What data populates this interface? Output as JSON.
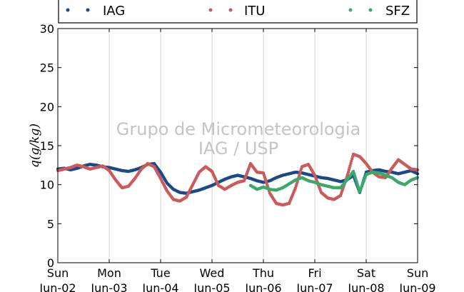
{
  "chart_data": {
    "type": "scatter",
    "ylabel": "q(g/kg)",
    "ylim": [
      0,
      30
    ],
    "yticks": [
      0,
      5,
      10,
      15,
      20,
      25,
      30
    ],
    "xlim": [
      "2013-06-02T00:00",
      "2013-06-09T00:00"
    ],
    "xticks": [
      {
        "day": "Sun",
        "date": "Jun-02"
      },
      {
        "day": "Mon",
        "date": "Jun-03"
      },
      {
        "day": "Tue",
        "date": "Jun-04"
      },
      {
        "day": "Wed",
        "date": "Jun-05"
      },
      {
        "day": "Thu",
        "date": "Jun-06"
      },
      {
        "day": "Fri",
        "date": "Jun-07"
      },
      {
        "day": "Sat",
        "date": "Jun-08"
      },
      {
        "day": "Sun",
        "date": "Jun-09"
      }
    ],
    "grid": true,
    "legend_position": "top",
    "watermark": [
      "Grupo de Micrometeorologia",
      "IAG / USP"
    ],
    "series": [
      {
        "name": "IAG",
        "color": "#1a4a8a",
        "points": [
          [
            "2013-06-02T00:00",
            12.0
          ],
          [
            "2013-06-02T03:00",
            12.1
          ],
          [
            "2013-06-02T06:00",
            11.9
          ],
          [
            "2013-06-02T09:00",
            12.1
          ],
          [
            "2013-06-02T12:00",
            12.4
          ],
          [
            "2013-06-02T15:00",
            12.6
          ],
          [
            "2013-06-02T18:00",
            12.5
          ],
          [
            "2013-06-02T21:00",
            12.3
          ],
          [
            "2013-06-03T00:00",
            12.2
          ],
          [
            "2013-06-03T03:00",
            12.0
          ],
          [
            "2013-06-03T06:00",
            11.8
          ],
          [
            "2013-06-03T09:00",
            11.7
          ],
          [
            "2013-06-03T12:00",
            11.9
          ],
          [
            "2013-06-03T15:00",
            12.2
          ],
          [
            "2013-06-03T18:00",
            12.6
          ],
          [
            "2013-06-03T21:00",
            12.7
          ],
          [
            "2013-06-04T00:00",
            11.6
          ],
          [
            "2013-06-04T03:00",
            10.2
          ],
          [
            "2013-06-04T06:00",
            9.4
          ],
          [
            "2013-06-04T09:00",
            9.0
          ],
          [
            "2013-06-04T12:00",
            8.9
          ],
          [
            "2013-06-04T15:00",
            9.1
          ],
          [
            "2013-06-04T18:00",
            9.3
          ],
          [
            "2013-06-04T21:00",
            9.6
          ],
          [
            "2013-06-05T00:00",
            9.9
          ],
          [
            "2013-06-05T03:00",
            10.3
          ],
          [
            "2013-06-05T06:00",
            10.7
          ],
          [
            "2013-06-05T09:00",
            11.0
          ],
          [
            "2013-06-05T12:00",
            11.2
          ],
          [
            "2013-06-05T15:00",
            11.0
          ],
          [
            "2013-06-05T18:00",
            10.8
          ],
          [
            "2013-06-05T21:00",
            10.5
          ],
          [
            "2013-06-06T00:00",
            10.3
          ],
          [
            "2013-06-06T03:00",
            10.5
          ],
          [
            "2013-06-06T06:00",
            10.9
          ],
          [
            "2013-06-06T09:00",
            11.2
          ],
          [
            "2013-06-06T12:00",
            11.4
          ],
          [
            "2013-06-06T15:00",
            11.6
          ],
          [
            "2013-06-06T18:00",
            11.5
          ],
          [
            "2013-06-06T21:00",
            11.3
          ],
          [
            "2013-06-07T00:00",
            11.1
          ],
          [
            "2013-06-07T03:00",
            10.9
          ],
          [
            "2013-06-07T06:00",
            10.8
          ],
          [
            "2013-06-07T09:00",
            10.6
          ],
          [
            "2013-06-07T12:00",
            10.4
          ],
          [
            "2013-06-07T15:00",
            10.6
          ],
          [
            "2013-06-07T18:00",
            11.2
          ],
          [
            "2013-06-07T21:00",
            9.0
          ],
          [
            "2013-06-08T00:00",
            11.6
          ],
          [
            "2013-06-08T03:00",
            11.8
          ],
          [
            "2013-06-08T06:00",
            11.9
          ],
          [
            "2013-06-08T09:00",
            11.7
          ],
          [
            "2013-06-08T12:00",
            11.6
          ],
          [
            "2013-06-08T15:00",
            11.4
          ],
          [
            "2013-06-08T18:00",
            11.6
          ],
          [
            "2013-06-08T21:00",
            11.8
          ],
          [
            "2013-06-09T00:00",
            11.4
          ]
        ]
      },
      {
        "name": "ITU",
        "color": "#cc5a5a",
        "points": [
          [
            "2013-06-02T00:00",
            11.8
          ],
          [
            "2013-06-02T03:00",
            12.0
          ],
          [
            "2013-06-02T06:00",
            12.2
          ],
          [
            "2013-06-02T09:00",
            12.5
          ],
          [
            "2013-06-02T12:00",
            12.3
          ],
          [
            "2013-06-02T15:00",
            12.0
          ],
          [
            "2013-06-02T18:00",
            12.2
          ],
          [
            "2013-06-02T21:00",
            12.4
          ],
          [
            "2013-06-03T00:00",
            11.8
          ],
          [
            "2013-06-03T03:00",
            10.6
          ],
          [
            "2013-06-03T06:00",
            9.6
          ],
          [
            "2013-06-03T09:00",
            9.8
          ],
          [
            "2013-06-03T12:00",
            10.8
          ],
          [
            "2013-06-03T15:00",
            12.0
          ],
          [
            "2013-06-03T18:00",
            12.7
          ],
          [
            "2013-06-03T21:00",
            12.3
          ],
          [
            "2013-06-04T00:00",
            10.8
          ],
          [
            "2013-06-04T03:00",
            9.2
          ],
          [
            "2013-06-04T06:00",
            8.1
          ],
          [
            "2013-06-04T09:00",
            7.9
          ],
          [
            "2013-06-04T12:00",
            8.4
          ],
          [
            "2013-06-04T15:00",
            10.0
          ],
          [
            "2013-06-04T18:00",
            11.6
          ],
          [
            "2013-06-04T21:00",
            12.3
          ],
          [
            "2013-06-05T00:00",
            11.7
          ],
          [
            "2013-06-05T03:00",
            9.9
          ],
          [
            "2013-06-05T06:00",
            9.4
          ],
          [
            "2013-06-05T09:00",
            9.9
          ],
          [
            "2013-06-05T12:00",
            10.3
          ],
          [
            "2013-06-05T15:00",
            10.5
          ],
          [
            "2013-06-05T18:00",
            12.7
          ],
          [
            "2013-06-05T21:00",
            11.6
          ],
          [
            "2013-06-06T00:00",
            11.5
          ],
          [
            "2013-06-06T03:00",
            8.9
          ],
          [
            "2013-06-06T06:00",
            7.6
          ],
          [
            "2013-06-06T09:00",
            7.4
          ],
          [
            "2013-06-06T12:00",
            7.6
          ],
          [
            "2013-06-06T15:00",
            9.6
          ],
          [
            "2013-06-06T18:00",
            12.3
          ],
          [
            "2013-06-06T21:00",
            12.6
          ],
          [
            "2013-06-07T00:00",
            11.2
          ],
          [
            "2013-06-07T03:00",
            9.0
          ],
          [
            "2013-06-07T06:00",
            8.3
          ],
          [
            "2013-06-07T09:00",
            8.1
          ],
          [
            "2013-06-07T12:00",
            8.6
          ],
          [
            "2013-06-07T15:00",
            11.0
          ],
          [
            "2013-06-07T18:00",
            13.9
          ],
          [
            "2013-06-07T21:00",
            13.6
          ],
          [
            "2013-06-08T00:00",
            12.7
          ],
          [
            "2013-06-08T03:00",
            11.6
          ],
          [
            "2013-06-08T06:00",
            11.0
          ],
          [
            "2013-06-08T09:00",
            10.9
          ],
          [
            "2013-06-08T12:00",
            12.1
          ],
          [
            "2013-06-08T15:00",
            13.2
          ],
          [
            "2013-06-08T18:00",
            12.6
          ],
          [
            "2013-06-08T21:00",
            12.0
          ],
          [
            "2013-06-09T00:00",
            11.9
          ]
        ]
      },
      {
        "name": "SFZ",
        "color": "#3aaa6a",
        "points": [
          [
            "2013-06-05T18:00",
            9.9
          ],
          [
            "2013-06-05T21:00",
            9.4
          ],
          [
            "2013-06-06T00:00",
            9.7
          ],
          [
            "2013-06-06T03:00",
            9.4
          ],
          [
            "2013-06-06T06:00",
            9.3
          ],
          [
            "2013-06-06T09:00",
            9.6
          ],
          [
            "2013-06-06T12:00",
            10.1
          ],
          [
            "2013-06-06T15:00",
            10.6
          ],
          [
            "2013-06-06T18:00",
            10.9
          ],
          [
            "2013-06-06T21:00",
            10.5
          ],
          [
            "2013-06-07T00:00",
            10.3
          ],
          [
            "2013-06-07T03:00",
            10.0
          ],
          [
            "2013-06-07T06:00",
            9.8
          ],
          [
            "2013-06-07T09:00",
            9.6
          ],
          [
            "2013-06-07T12:00",
            9.6
          ],
          [
            "2013-06-07T15:00",
            10.6
          ],
          [
            "2013-06-07T18:00",
            11.7
          ],
          [
            "2013-06-07T21:00",
            9.1
          ],
          [
            "2013-06-08T00:00",
            11.3
          ],
          [
            "2013-06-08T03:00",
            11.6
          ],
          [
            "2013-06-08T06:00",
            11.5
          ],
          [
            "2013-06-08T09:00",
            11.2
          ],
          [
            "2013-06-08T12:00",
            10.9
          ],
          [
            "2013-06-08T15:00",
            10.3
          ],
          [
            "2013-06-08T18:00",
            10.0
          ],
          [
            "2013-06-08T21:00",
            10.6
          ],
          [
            "2013-06-09T00:00",
            10.9
          ]
        ]
      }
    ]
  }
}
